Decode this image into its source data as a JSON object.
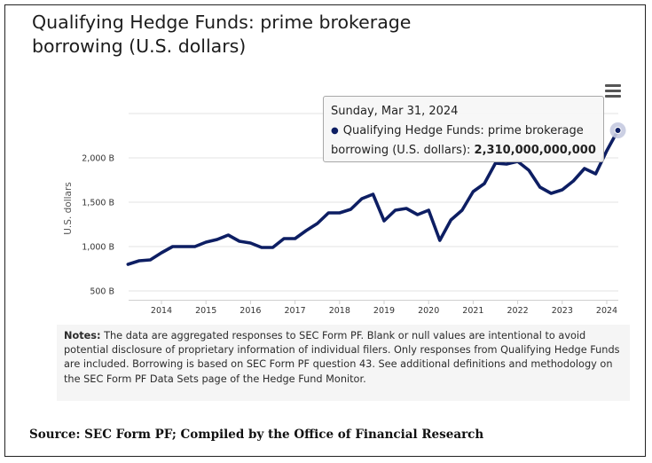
{
  "title": "Qualifying Hedge Funds: prime brokerage borrowing (U.S. dollars)",
  "tooltip": {
    "date": "Sunday, Mar 31, 2024",
    "series_prefix": "Qualifying Hedge Funds: prime brokerage borrowing (U.S. dollars): ",
    "value": "2,310,000,000,000"
  },
  "notes": {
    "label": "Notes:",
    "text": " The data are aggregated responses to SEC Form PF. Blank or null values are intentional to avoid potential disclosure of proprietary information of individual filers. Only responses from Qualifying Hedge Funds are included. Borrowing is based on SEC Form PF question 43. See additional definitions and methodology on the SEC Form PF Data Sets page of the Hedge Fund Monitor."
  },
  "source": "Source: SEC Form PF; Compiled by the Office of Financial Research",
  "menu_icon": "hamburger-menu-icon",
  "colors": {
    "line": "#0d1e63",
    "grid": "#e3e3e3",
    "highlight": "#c5cae0"
  },
  "chart_data": {
    "type": "line",
    "title": "Qualifying Hedge Funds: prime brokerage borrowing (U.S. dollars)",
    "xlabel": "",
    "ylabel": "U.S. dollars",
    "y_unit": "B",
    "ylim": [
      500,
      2500
    ],
    "y_ticks": [
      500,
      1000,
      1500,
      2000
    ],
    "y_tick_labels": [
      "500 B",
      "1,000 B",
      "1,500 B",
      "2,000 B"
    ],
    "x_range": [
      2013.25,
      2024.25
    ],
    "x_ticks": [
      2014,
      2015,
      2016,
      2017,
      2018,
      2019,
      2020,
      2021,
      2022,
      2023,
      2024
    ],
    "x_tick_labels": [
      "2014",
      "2015",
      "2016",
      "2017",
      "2018",
      "2019",
      "2020",
      "2021",
      "2022",
      "2023",
      "2024"
    ],
    "grid": true,
    "legend": "none",
    "series": [
      {
        "x": [
          2013.25,
          2013.5,
          2013.75,
          2014.0,
          2014.25,
          2014.5,
          2014.75,
          2015.0,
          2015.25,
          2015.5,
          2015.75,
          2016.0,
          2016.25,
          2016.5,
          2016.75,
          2017.0,
          2017.25,
          2017.5,
          2017.75,
          2018.0,
          2018.25,
          2018.5,
          2018.75,
          2019.0,
          2019.25,
          2019.5,
          2019.75,
          2020.0,
          2020.25,
          2020.5,
          2020.75,
          2021.0,
          2021.25,
          2021.5,
          2021.75,
          2022.0,
          2022.25,
          2022.5,
          2022.75,
          2023.0,
          2023.25,
          2023.5,
          2023.75,
          2024.0,
          2024.25
        ],
        "values": [
          800,
          840,
          850,
          930,
          1000,
          1000,
          1000,
          1050,
          1080,
          1130,
          1060,
          1040,
          990,
          990,
          1090,
          1090,
          1180,
          1260,
          1380,
          1380,
          1420,
          1540,
          1590,
          1290,
          1410,
          1430,
          1360,
          1410,
          1070,
          1300,
          1410,
          1620,
          1710,
          1940,
          1930,
          1960,
          1860,
          1670,
          1600,
          1640,
          1740,
          1880,
          1820,
          2080,
          2310
        ]
      }
    ]
  }
}
